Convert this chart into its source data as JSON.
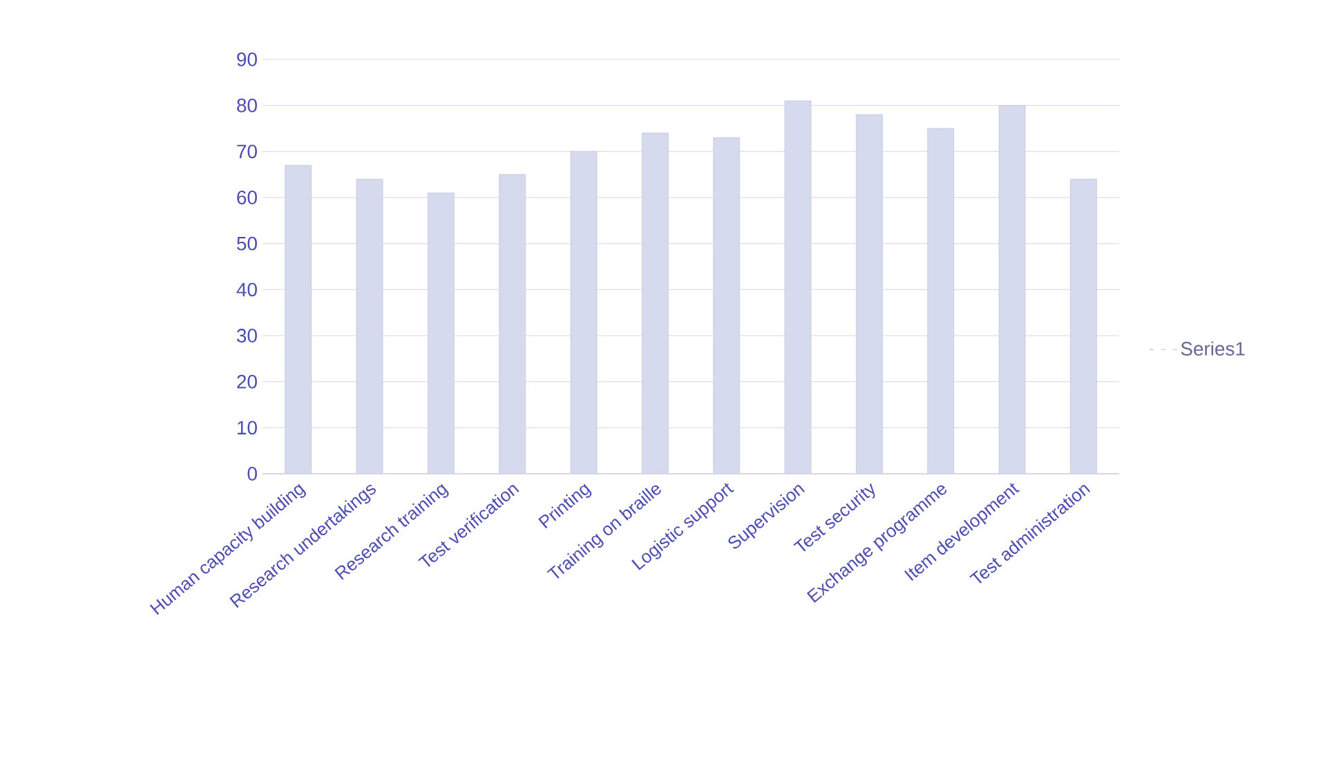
{
  "chart_data": {
    "type": "bar",
    "categories": [
      "Human capacity building",
      "Research undertakings",
      "Research training",
      "Test verification",
      "Printing",
      "Training on braille",
      "Logistic support",
      "Supervision",
      "Test security",
      "Exchange programme",
      "Item development",
      "Test administration"
    ],
    "series": [
      {
        "name": "Series1",
        "color": "#d6daee",
        "values": [
          67,
          64,
          61,
          65,
          70,
          74,
          73,
          81,
          78,
          75,
          80,
          64
        ]
      }
    ],
    "ylim": [
      0,
      90
    ],
    "yticks": [
      0,
      10,
      20,
      30,
      40,
      50,
      60,
      70,
      80,
      90
    ],
    "grid": "y",
    "legend": "right"
  }
}
